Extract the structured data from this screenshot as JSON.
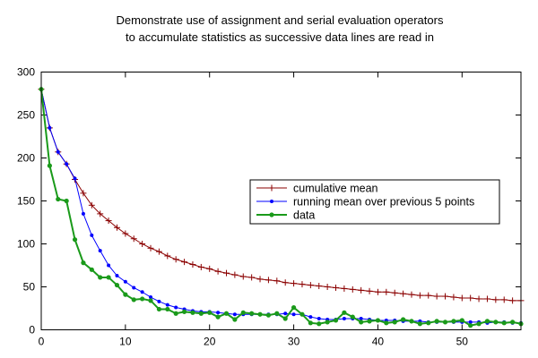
{
  "chart_data": {
    "type": "line",
    "title_lines": [
      "Demonstrate use of assignment and serial evaluation operators",
      "to accumulate statistics as successive data lines are read in"
    ],
    "xlabel": "",
    "ylabel": "",
    "xlim": [
      0,
      57
    ],
    "ylim": [
      0,
      300
    ],
    "xticks": [
      0,
      10,
      20,
      30,
      40,
      50
    ],
    "yticks": [
      0,
      50,
      100,
      150,
      200,
      250,
      300
    ],
    "grid": false,
    "legend_position": "middle-right",
    "series": [
      {
        "name": "cumulative mean",
        "color": "#8b0000",
        "marker": "plus",
        "x": [
          0,
          1,
          2,
          3,
          4,
          5,
          6,
          7,
          8,
          9,
          10,
          11,
          12,
          13,
          14,
          15,
          16,
          17,
          18,
          19,
          20,
          21,
          22,
          23,
          24,
          25,
          26,
          27,
          28,
          29,
          30,
          31,
          32,
          33,
          34,
          35,
          36,
          37,
          38,
          39,
          40,
          41,
          42,
          43,
          44,
          45,
          46,
          47,
          48,
          49,
          50,
          51,
          52,
          53,
          54,
          55,
          56,
          57
        ],
        "values": [
          280,
          235,
          207,
          193,
          175,
          159,
          145,
          135,
          127,
          119,
          112,
          106,
          100,
          95,
          91,
          86,
          82,
          79,
          76,
          73,
          71,
          68,
          66,
          64,
          62,
          61,
          59,
          58,
          57,
          55,
          54,
          53,
          52,
          51,
          50,
          49,
          48,
          47,
          46,
          45,
          44,
          44,
          43,
          42,
          41,
          40,
          40,
          39,
          39,
          38,
          37,
          37,
          36,
          36,
          35,
          35,
          34,
          34
        ]
      },
      {
        "name": "running mean over previous 5 points",
        "color": "#0000ff",
        "marker": "dot",
        "x": [
          0,
          1,
          2,
          3,
          4,
          5,
          6,
          7,
          8,
          9,
          10,
          11,
          12,
          13,
          14,
          15,
          16,
          17,
          18,
          19,
          20,
          21,
          22,
          23,
          24,
          25,
          26,
          27,
          28,
          29,
          30,
          31,
          32,
          33,
          34,
          35,
          36,
          37,
          38,
          39,
          40,
          41,
          42,
          43,
          44,
          45,
          46,
          47,
          48,
          49,
          50,
          51,
          52,
          53,
          54,
          55,
          56,
          57
        ],
        "values": [
          280,
          235,
          207,
          193,
          176,
          135,
          110,
          92,
          75,
          63,
          56,
          49,
          44,
          38,
          33,
          29,
          26,
          24,
          22,
          21,
          21,
          20,
          19,
          18,
          18,
          18,
          18,
          18,
          18,
          19,
          18,
          18,
          15,
          13,
          12,
          12,
          13,
          13,
          13,
          12,
          11,
          11,
          11,
          10,
          10,
          10,
          9,
          9,
          9,
          9,
          9,
          9,
          9,
          8,
          9,
          9,
          8,
          8
        ]
      },
      {
        "name": "data",
        "color": "#1a9a1a",
        "marker": "dot",
        "x": [
          0,
          1,
          2,
          3,
          4,
          5,
          6,
          7,
          8,
          9,
          10,
          11,
          12,
          13,
          14,
          15,
          16,
          17,
          18,
          19,
          20,
          21,
          22,
          23,
          24,
          25,
          26,
          27,
          28,
          29,
          30,
          31,
          32,
          33,
          34,
          35,
          36,
          37,
          38,
          39,
          40,
          41,
          42,
          43,
          44,
          45,
          46,
          47,
          48,
          49,
          50,
          51,
          52,
          53,
          54,
          55,
          56,
          57
        ],
        "values": [
          280,
          191,
          152,
          150,
          105,
          78,
          70,
          61,
          61,
          52,
          41,
          35,
          36,
          34,
          24,
          24,
          19,
          21,
          20,
          19,
          20,
          15,
          19,
          12,
          20,
          19,
          18,
          17,
          19,
          13,
          26,
          18,
          8,
          7,
          9,
          11,
          20,
          15,
          9,
          10,
          11,
          8,
          9,
          12,
          10,
          7,
          8,
          10,
          9,
          10,
          11,
          5,
          7,
          10,
          9,
          8,
          9,
          7
        ]
      }
    ]
  }
}
